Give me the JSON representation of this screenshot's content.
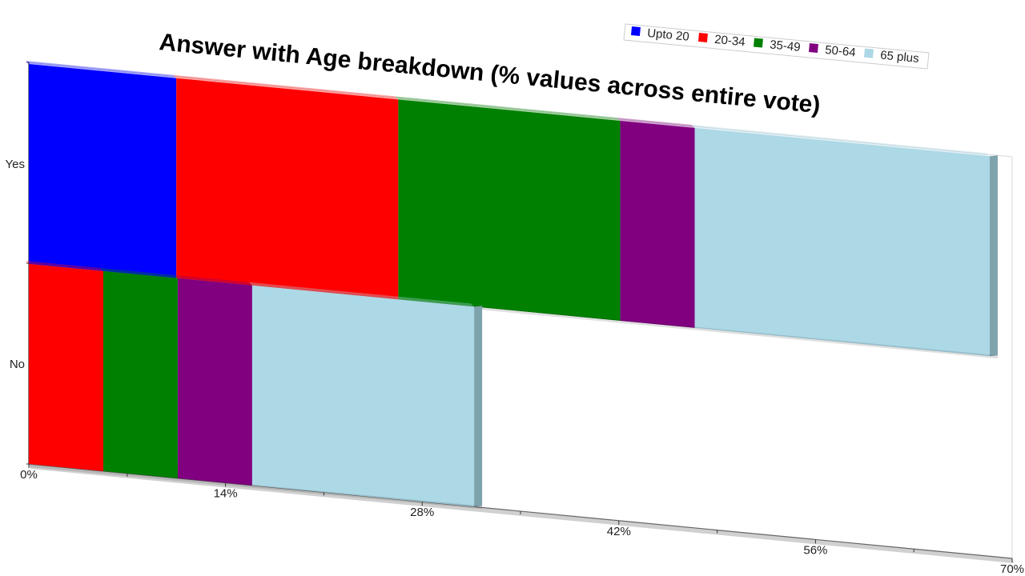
{
  "chart_data": {
    "type": "bar",
    "orientation": "horizontal",
    "stacked": true,
    "title": "Answer with Age breakdown (% values across entire vote)",
    "categories": [
      "Yes",
      "No"
    ],
    "series": [
      {
        "name": "Upto 20",
        "color": "#0000ff",
        "values": [
          10.5,
          0
        ]
      },
      {
        "name": "20-34",
        "color": "#ff0000",
        "values": [
          15.8,
          5.3
        ]
      },
      {
        "name": "35-49",
        "color": "#008000",
        "values": [
          15.8,
          5.3
        ]
      },
      {
        "name": "50-64",
        "color": "#800080",
        "values": [
          5.3,
          5.3
        ]
      },
      {
        "name": "65 plus",
        "color": "#add8e6",
        "values": [
          21.0,
          15.8
        ]
      }
    ],
    "xlim": [
      0,
      70
    ],
    "xticks": [
      0,
      14,
      28,
      42,
      56,
      70
    ],
    "xtick_labels": [
      "0%",
      "14%",
      "28%",
      "42%",
      "56%",
      "70%"
    ],
    "legend_position": "top-right",
    "grid": false
  }
}
